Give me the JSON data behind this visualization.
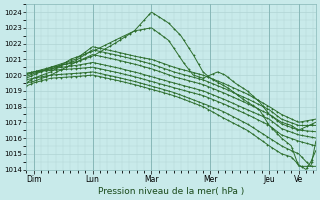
{
  "xlabel": "Pression niveau de la mer( hPa )",
  "bg_color": "#c8eaea",
  "grid_color": "#b0d4d4",
  "line_color": "#2d6e2d",
  "ylim": [
    1014,
    1024.5
  ],
  "xlim": [
    0,
    118
  ],
  "day_labels": [
    "Dim",
    "Lun",
    "Mar",
    "Mer",
    "Jeu",
    "Ve"
  ],
  "day_positions": [
    3,
    27,
    51,
    75,
    99,
    111
  ],
  "yticks": [
    1014,
    1015,
    1016,
    1017,
    1018,
    1019,
    1020,
    1021,
    1022,
    1023,
    1024
  ],
  "series": [
    {
      "name": "s1_high_peak",
      "points": [
        [
          0,
          1019.5
        ],
        [
          3,
          1019.6
        ],
        [
          10,
          1020.0
        ],
        [
          20,
          1020.8
        ],
        [
          27,
          1021.2
        ],
        [
          36,
          1022.0
        ],
        [
          44,
          1022.8
        ],
        [
          51,
          1024.0
        ],
        [
          58,
          1023.3
        ],
        [
          63,
          1022.5
        ],
        [
          68,
          1021.3
        ],
        [
          72,
          1020.2
        ],
        [
          75,
          1019.8
        ],
        [
          82,
          1019.2
        ],
        [
          88,
          1018.5
        ],
        [
          95,
          1017.8
        ],
        [
          99,
          1016.8
        ],
        [
          104,
          1016.0
        ],
        [
          108,
          1015.5
        ],
        [
          111,
          1014.2
        ],
        [
          118,
          1014.2
        ]
      ]
    },
    {
      "name": "s2_med_peak_bump",
      "points": [
        [
          0,
          1019.7
        ],
        [
          3,
          1019.8
        ],
        [
          10,
          1020.2
        ],
        [
          18,
          1021.0
        ],
        [
          27,
          1021.5
        ],
        [
          36,
          1022.2
        ],
        [
          44,
          1022.8
        ],
        [
          51,
          1023.0
        ],
        [
          58,
          1022.2
        ],
        [
          64,
          1020.8
        ],
        [
          68,
          1020.0
        ],
        [
          72,
          1019.8
        ],
        [
          75,
          1020.0
        ],
        [
          78,
          1020.2
        ],
        [
          81,
          1020.0
        ],
        [
          85,
          1019.5
        ],
        [
          90,
          1019.0
        ],
        [
          95,
          1018.3
        ],
        [
          99,
          1017.5
        ],
        [
          104,
          1017.0
        ],
        [
          108,
          1016.8
        ],
        [
          111,
          1016.5
        ],
        [
          118,
          1017.0
        ]
      ]
    },
    {
      "name": "s3_lun_peak1",
      "points": [
        [
          0,
          1019.8
        ],
        [
          3,
          1020.0
        ],
        [
          10,
          1020.5
        ],
        [
          20,
          1021.0
        ],
        [
          27,
          1021.8
        ],
        [
          36,
          1021.5
        ],
        [
          44,
          1021.2
        ],
        [
          51,
          1021.0
        ],
        [
          60,
          1020.5
        ],
        [
          72,
          1020.0
        ],
        [
          80,
          1019.5
        ],
        [
          90,
          1018.8
        ],
        [
          99,
          1018.0
        ],
        [
          104,
          1017.5
        ],
        [
          111,
          1017.0
        ],
        [
          118,
          1017.2
        ]
      ]
    },
    {
      "name": "s4_lun_peak2",
      "points": [
        [
          0,
          1019.9
        ],
        [
          3,
          1020.1
        ],
        [
          10,
          1020.4
        ],
        [
          20,
          1020.9
        ],
        [
          27,
          1021.6
        ],
        [
          36,
          1021.3
        ],
        [
          44,
          1021.0
        ],
        [
          51,
          1020.7
        ],
        [
          60,
          1020.2
        ],
        [
          72,
          1019.7
        ],
        [
          80,
          1019.2
        ],
        [
          90,
          1018.5
        ],
        [
          99,
          1017.8
        ],
        [
          104,
          1017.2
        ],
        [
          111,
          1016.8
        ],
        [
          118,
          1016.8
        ]
      ]
    },
    {
      "name": "s5_lun_peak3",
      "points": [
        [
          0,
          1020.0
        ],
        [
          3,
          1020.2
        ],
        [
          10,
          1020.5
        ],
        [
          20,
          1020.8
        ],
        [
          27,
          1021.3
        ],
        [
          36,
          1021.0
        ],
        [
          44,
          1020.7
        ],
        [
          51,
          1020.4
        ],
        [
          60,
          1019.9
        ],
        [
          72,
          1019.4
        ],
        [
          80,
          1018.9
        ],
        [
          90,
          1018.2
        ],
        [
          99,
          1017.5
        ],
        [
          104,
          1016.9
        ],
        [
          111,
          1016.5
        ],
        [
          118,
          1016.4
        ]
      ]
    },
    {
      "name": "s6_flat_then_down",
      "points": [
        [
          0,
          1020.1
        ],
        [
          3,
          1020.2
        ],
        [
          10,
          1020.4
        ],
        [
          20,
          1020.6
        ],
        [
          27,
          1020.8
        ],
        [
          36,
          1020.5
        ],
        [
          44,
          1020.2
        ],
        [
          51,
          1019.9
        ],
        [
          60,
          1019.5
        ],
        [
          72,
          1019.0
        ],
        [
          80,
          1018.5
        ],
        [
          90,
          1017.8
        ],
        [
          99,
          1017.2
        ],
        [
          104,
          1016.6
        ],
        [
          111,
          1016.2
        ],
        [
          118,
          1016.0
        ]
      ]
    },
    {
      "name": "s7_flat_then_down2",
      "points": [
        [
          0,
          1020.1
        ],
        [
          3,
          1020.2
        ],
        [
          10,
          1020.3
        ],
        [
          20,
          1020.4
        ],
        [
          27,
          1020.5
        ],
        [
          36,
          1020.2
        ],
        [
          44,
          1019.9
        ],
        [
          51,
          1019.6
        ],
        [
          60,
          1019.2
        ],
        [
          72,
          1018.7
        ],
        [
          80,
          1018.2
        ],
        [
          90,
          1017.5
        ],
        [
          99,
          1016.8
        ],
        [
          104,
          1016.2
        ],
        [
          111,
          1015.8
        ],
        [
          118,
          1015.5
        ]
      ]
    },
    {
      "name": "s8_lowest",
      "points": [
        [
          0,
          1019.5
        ],
        [
          3,
          1019.8
        ],
        [
          10,
          1020.0
        ],
        [
          20,
          1020.1
        ],
        [
          27,
          1020.2
        ],
        [
          36,
          1019.9
        ],
        [
          44,
          1019.6
        ],
        [
          51,
          1019.3
        ],
        [
          60,
          1018.9
        ],
        [
          72,
          1018.2
        ],
        [
          80,
          1017.7
        ],
        [
          90,
          1016.9
        ],
        [
          99,
          1016.0
        ],
        [
          104,
          1015.5
        ],
        [
          108,
          1015.2
        ],
        [
          111,
          1015.0
        ],
        [
          114,
          1014.5
        ],
        [
          116,
          1014.2
        ],
        [
          118,
          1015.8
        ]
      ]
    },
    {
      "name": "s9_very_low_dip",
      "points": [
        [
          0,
          1019.3
        ],
        [
          3,
          1019.5
        ],
        [
          10,
          1019.8
        ],
        [
          20,
          1019.9
        ],
        [
          27,
          1020.0
        ],
        [
          36,
          1019.7
        ],
        [
          44,
          1019.4
        ],
        [
          51,
          1019.1
        ],
        [
          60,
          1018.7
        ],
        [
          72,
          1018.0
        ],
        [
          80,
          1017.3
        ],
        [
          90,
          1016.5
        ],
        [
          99,
          1015.5
        ],
        [
          104,
          1015.0
        ],
        [
          108,
          1014.8
        ],
        [
          111,
          1014.3
        ],
        [
          114,
          1014.0
        ],
        [
          116,
          1014.5
        ],
        [
          118,
          1015.2
        ]
      ]
    }
  ]
}
